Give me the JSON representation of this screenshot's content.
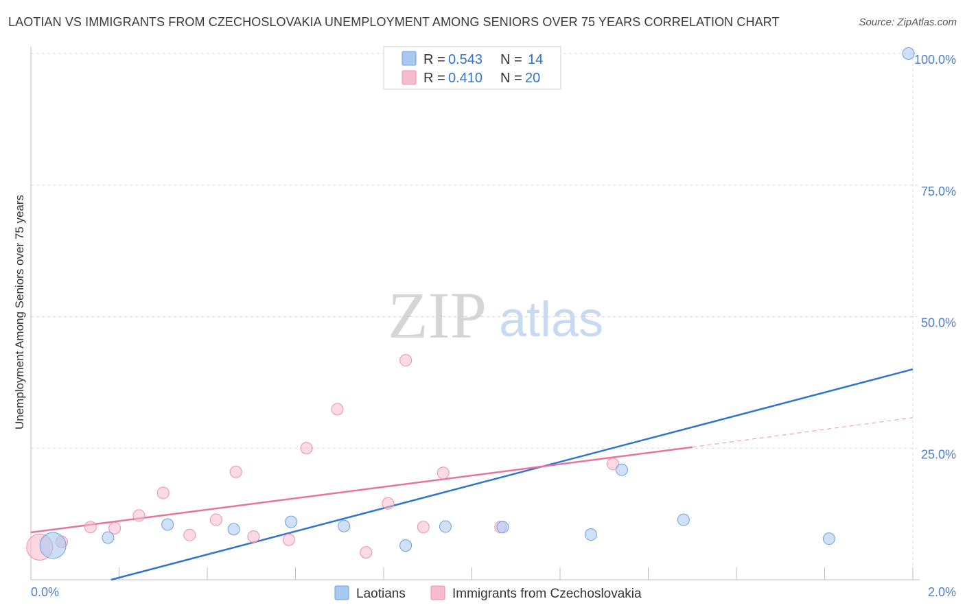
{
  "title": "LAOTIAN VS IMMIGRANTS FROM CZECHOSLOVAKIA UNEMPLOYMENT AMONG SENIORS OVER 75 YEARS CORRELATION CHART",
  "source": "Source: ZipAtlas.com",
  "watermark": {
    "zip": "ZIP",
    "atlas": "atlas"
  },
  "colors": {
    "blue_fill": "#a9c8f0",
    "blue_stroke": "#6a9fe0",
    "blue_line": "#2f74cf",
    "pink_fill": "#f6bccd",
    "pink_stroke": "#ec8fab",
    "pink_line": "#e8739a",
    "grid": "#d8d8d8",
    "axis_text": "#4a7cc7"
  },
  "legend": {
    "rows": [
      {
        "series": "blue",
        "r_label": "R = ",
        "r_value": "0.543",
        "n_label": "N = ",
        "n_value": "14"
      },
      {
        "series": "pink",
        "r_label": "R = ",
        "r_value": "0.410",
        "n_label": "N = ",
        "n_value": "20"
      }
    ]
  },
  "bottom_legend": [
    {
      "series": "blue",
      "label": "Laotians"
    },
    {
      "series": "pink",
      "label": "Immigrants from Czechoslovakia"
    }
  ],
  "chart_data": {
    "type": "scatter",
    "title": "LAOTIAN VS IMMIGRANTS FROM CZECHOSLOVAKIA UNEMPLOYMENT AMONG SENIORS OVER 75 YEARS CORRELATION CHART",
    "xlabel": "",
    "ylabel": "Unemployment Among Seniors over 75 years",
    "xlim": [
      0,
      2.0
    ],
    "ylim": [
      0,
      100
    ],
    "x_tick_labels": [
      {
        "value": 0,
        "label": "0.0%"
      },
      {
        "value": 2.0,
        "label": "2.0%"
      }
    ],
    "y_tick_labels": [
      {
        "value": 25,
        "label": "25.0%"
      },
      {
        "value": 50,
        "label": "50.0%"
      },
      {
        "value": 75,
        "label": "75.0%"
      },
      {
        "value": 100,
        "label": "100.0%"
      }
    ],
    "x_minor_ticks": [
      0.2,
      0.4,
      0.6,
      0.8,
      1.0,
      1.2,
      1.4,
      1.6,
      1.8,
      2.0
    ],
    "series": [
      {
        "name": "Laotians",
        "color": "blue",
        "points": [
          {
            "x": 0.05,
            "y": 6.5,
            "size": "large"
          },
          {
            "x": 0.175,
            "y": 8.0
          },
          {
            "x": 0.31,
            "y": 10.5
          },
          {
            "x": 0.46,
            "y": 9.6
          },
          {
            "x": 0.59,
            "y": 11.0
          },
          {
            "x": 0.71,
            "y": 10.2
          },
          {
            "x": 0.85,
            "y": 6.5
          },
          {
            "x": 0.94,
            "y": 10.1
          },
          {
            "x": 1.07,
            "y": 10.0
          },
          {
            "x": 1.27,
            "y": 8.6
          },
          {
            "x": 1.34,
            "y": 20.9
          },
          {
            "x": 1.48,
            "y": 11.4
          },
          {
            "x": 1.81,
            "y": 7.8
          },
          {
            "x": 1.99,
            "y": 100.0
          }
        ],
        "trend": {
          "x0": 0.0,
          "y0": -4.0,
          "x1": 2.0,
          "y1": 40.0
        }
      },
      {
        "name": "Immigrants from Czechoslovakia",
        "color": "pink",
        "points": [
          {
            "x": 0.02,
            "y": 6.2,
            "size": "large"
          },
          {
            "x": 0.07,
            "y": 7.2
          },
          {
            "x": 0.135,
            "y": 10.0
          },
          {
            "x": 0.19,
            "y": 9.8
          },
          {
            "x": 0.245,
            "y": 12.2
          },
          {
            "x": 0.3,
            "y": 16.5
          },
          {
            "x": 0.36,
            "y": 8.5
          },
          {
            "x": 0.42,
            "y": 11.4
          },
          {
            "x": 0.465,
            "y": 20.5
          },
          {
            "x": 0.505,
            "y": 8.2
          },
          {
            "x": 0.585,
            "y": 7.6
          },
          {
            "x": 0.625,
            "y": 25.0
          },
          {
            "x": 0.695,
            "y": 32.4
          },
          {
            "x": 0.76,
            "y": 5.2
          },
          {
            "x": 0.81,
            "y": 14.5
          },
          {
            "x": 0.85,
            "y": 41.7
          },
          {
            "x": 0.89,
            "y": 10.0
          },
          {
            "x": 0.935,
            "y": 20.3
          },
          {
            "x": 1.065,
            "y": 10.0
          },
          {
            "x": 1.32,
            "y": 22.0
          }
        ],
        "trend": {
          "x0": 0.0,
          "y0": 9.0,
          "x1": 1.5,
          "y1": 25.2
        },
        "trend_dashed": {
          "x0": 1.5,
          "y0": 25.2,
          "x1": 2.0,
          "y1": 30.8
        }
      }
    ]
  }
}
